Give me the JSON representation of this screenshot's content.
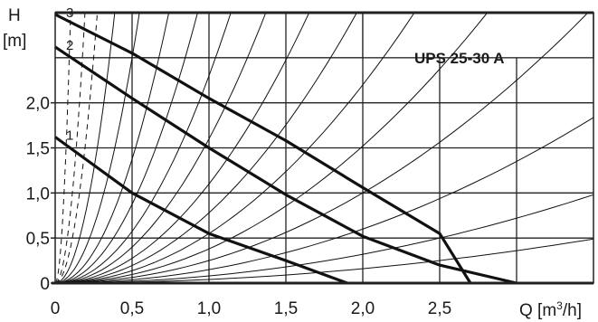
{
  "chart_data": {
    "type": "line",
    "title": "UPS 25-30 A",
    "xlabel": "Q [m³/h]",
    "ylabel_line1": "H",
    "ylabel_line2": "[m]",
    "xlim": [
      0,
      3.5
    ],
    "ylim": [
      0,
      3.0
    ],
    "x_tick_labels": [
      "0",
      "0,5",
      "1,0",
      "1,5",
      "2,0",
      "2,5"
    ],
    "x_tick_values": [
      0,
      0.5,
      1.0,
      1.5,
      2.0,
      2.5
    ],
    "y_tick_labels": [
      "0",
      "0,5",
      "1,0",
      "1,5",
      "2,0"
    ],
    "y_tick_values": [
      0,
      0.5,
      1.0,
      1.5,
      2.0
    ],
    "grid": true,
    "series": [
      {
        "name": "3",
        "x": [
          0.0,
          0.5,
          1.0,
          1.5,
          2.0,
          2.5,
          2.7
        ],
        "y": [
          2.98,
          2.55,
          2.05,
          1.58,
          1.06,
          0.55,
          0.0
        ]
      },
      {
        "name": "2",
        "x": [
          0.0,
          0.5,
          1.0,
          1.5,
          2.0,
          2.5,
          3.0
        ],
        "y": [
          2.62,
          2.05,
          1.5,
          0.98,
          0.52,
          0.2,
          0.0
        ]
      },
      {
        "name": "1",
        "x": [
          0.0,
          0.5,
          1.0,
          1.5,
          1.9
        ],
        "y": [
          1.62,
          1.0,
          0.55,
          0.25,
          0.0
        ]
      }
    ],
    "system_curve_coefficients": [
      300,
      80,
      40,
      20,
      10,
      5.5,
      3.5,
      2.3,
      1.6,
      1.1,
      0.78,
      0.55,
      0.38,
      0.25,
      0.15,
      0.08,
      0.04
    ],
    "colors": {
      "curve": "#111111",
      "grid": "#222222",
      "background": "#ffffff"
    }
  }
}
